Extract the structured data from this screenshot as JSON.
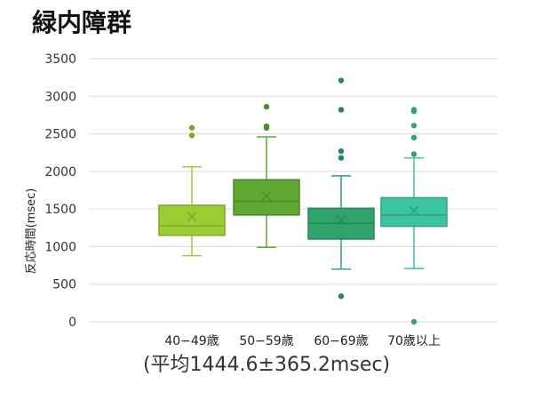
{
  "chart_data": {
    "type": "box",
    "title": "緑内障群",
    "ylabel": "反応時間(msec)",
    "xlabel": "",
    "ylim": [
      0,
      3500
    ],
    "yticks": [
      0,
      500,
      1000,
      1500,
      2000,
      2500,
      3000,
      3500
    ],
    "grid": true,
    "note": "(平均1444.6±365.2msec)",
    "categories": [
      "40−49歳",
      "50−59歳",
      "60−69歳",
      "70歳以上"
    ],
    "series": [
      {
        "category": "40−49歳",
        "color": "#9ACD32",
        "whisker_low": 880,
        "q1": 1150,
        "median": 1275,
        "q3": 1550,
        "whisker_high": 2060,
        "mean": 1400,
        "outliers": [
          2480,
          2580
        ]
      },
      {
        "category": "50−59歳",
        "color": "#5FA832",
        "whisker_low": 990,
        "q1": 1420,
        "median": 1600,
        "q3": 1890,
        "whisker_high": 2460,
        "mean": 1670,
        "outliers": [
          2580,
          2600,
          2860
        ]
      },
      {
        "category": "60−69歳",
        "color": "#2FA56B",
        "whisker_low": 700,
        "q1": 1100,
        "median": 1310,
        "q3": 1510,
        "whisker_high": 1940,
        "mean": 1350,
        "outliers": [
          340,
          2180,
          2270,
          2820,
          3210
        ]
      },
      {
        "category": "70歳以上",
        "color": "#3CC3A0",
        "whisker_low": 710,
        "q1": 1270,
        "median": 1420,
        "q3": 1650,
        "whisker_high": 2180,
        "mean": 1480,
        "outliers": [
          0,
          2230,
          2450,
          2610,
          2800,
          2820
        ]
      }
    ]
  }
}
